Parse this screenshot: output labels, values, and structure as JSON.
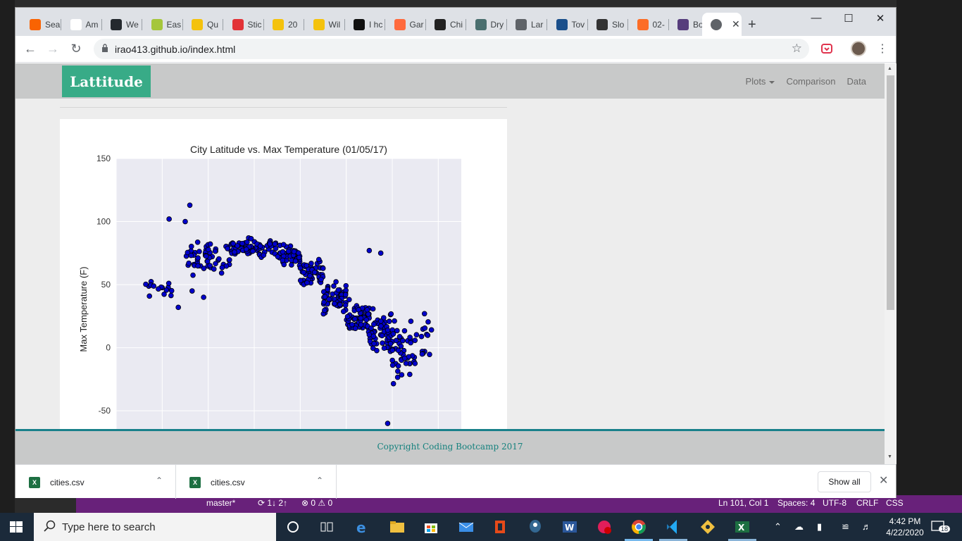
{
  "tabs": [
    {
      "label": "Sea",
      "favicon": "home-depot-icon",
      "color": "#f96302"
    },
    {
      "label": "Am",
      "favicon": "amazon-icon",
      "color": "#ffffff"
    },
    {
      "label": "We",
      "favicon": "github-icon",
      "color": "#24292e"
    },
    {
      "label": "Eas",
      "favicon": "avocado-icon",
      "color": "#a5c63b"
    },
    {
      "label": "Qu",
      "favicon": "flag-icon",
      "color": "#f4c20d"
    },
    {
      "label": "Stic",
      "favicon": "food-icon",
      "color": "#e23237"
    },
    {
      "label": "20",
      "favicon": "flag-icon",
      "color": "#f4c20d"
    },
    {
      "label": "Wil",
      "favicon": "flag-icon",
      "color": "#f4c20d"
    },
    {
      "label": "I hc",
      "favicon": "s-icon",
      "color": "#111111"
    },
    {
      "label": "Gar",
      "favicon": "spark-icon",
      "color": "#ff6a3d"
    },
    {
      "label": "Chi",
      "favicon": "f-icon",
      "color": "#222222"
    },
    {
      "label": "Dry",
      "favicon": "pick-icon",
      "color": "#4a6f6f"
    },
    {
      "label": "Lar",
      "favicon": "globe-icon",
      "color": "#5f6368"
    },
    {
      "label": "Tov",
      "favicon": "shoe-icon",
      "color": "#1a4f8b"
    },
    {
      "label": "Slo",
      "favicon": "pin-icon",
      "color": "#333333"
    },
    {
      "label": "02-",
      "favicon": "gitlab-icon",
      "color": "#fc6d26"
    },
    {
      "label": "Boc",
      "favicon": "bootstrap-icon",
      "color": "#563d7c"
    }
  ],
  "active_tab": {
    "favicon": "globe-icon",
    "close": "✕"
  },
  "new_tab": "+",
  "window_controls": {
    "minimize": "—",
    "maximize": "☐",
    "close": "✕"
  },
  "address": {
    "url": "irao413.github.io/index.html"
  },
  "site": {
    "brand": "Lattitude",
    "nav": {
      "plots": "Plots",
      "comparison": "Comparison",
      "data": "Data"
    },
    "footer": "Copyright Coding Bootcamp 2017",
    "brand_color": "#38ab87",
    "footer_text_color": "#16827e"
  },
  "chart_data": {
    "type": "scatter",
    "title": "City Latitude vs. Max Temperature (01/05/17)",
    "xlabel": "",
    "ylabel": "Max Temperature (F)",
    "ylim": [
      -70,
      150
    ],
    "yticks": [
      150,
      100,
      50,
      0,
      -50
    ],
    "xlim": [
      -60,
      90
    ],
    "point_color": "#0000cc",
    "grid": true,
    "background": "#eaeaf2",
    "clusters": [
      {
        "x_from": -48,
        "x_to": -30,
        "y_center": 48,
        "y_spread": 9,
        "n": 15
      },
      {
        "x_from": -30,
        "x_to": -10,
        "y_center": 72,
        "y_spread": 10,
        "n": 55
      },
      {
        "x_from": -10,
        "x_to": 10,
        "y_center": 80,
        "y_spread": 6,
        "n": 70
      },
      {
        "x_from": 10,
        "x_to": 20,
        "y_center": 74,
        "y_spread": 7,
        "n": 45
      },
      {
        "x_from": 20,
        "x_to": 30,
        "y_center": 58,
        "y_spread": 10,
        "n": 50
      },
      {
        "x_from": 30,
        "x_to": 40,
        "y_center": 40,
        "y_spread": 10,
        "n": 60
      },
      {
        "x_from": 40,
        "x_to": 50,
        "y_center": 25,
        "y_spread": 11,
        "n": 60
      },
      {
        "x_from": 50,
        "x_to": 60,
        "y_center": 12,
        "y_spread": 15,
        "n": 55
      },
      {
        "x_from": 60,
        "x_to": 70,
        "y_center": 0,
        "y_spread": 22,
        "n": 45
      },
      {
        "x_from": 70,
        "x_to": 78,
        "y_center": 5,
        "y_spread": 18,
        "n": 12
      }
    ],
    "outliers": [
      [
        -37,
        102
      ],
      [
        -30,
        100
      ],
      [
        -28,
        113
      ],
      [
        -33,
        32
      ],
      [
        -22,
        40
      ],
      [
        -27,
        45
      ],
      [
        50,
        77
      ],
      [
        55,
        75
      ],
      [
        58,
        -60
      ],
      [
        74,
        27
      ],
      [
        73,
        -5
      ]
    ]
  },
  "downloads": {
    "items": [
      {
        "name": "cities.csv"
      },
      {
        "name": "cities.csv"
      }
    ],
    "show_all": "Show all",
    "close": "✕"
  },
  "vscode_status": {
    "branch": "master*",
    "sync": "⟳ 1↓ 2↑",
    "problems": "⊗ 0 ⚠ 0",
    "position": "Ln 101, Col 1",
    "spaces": "Spaces: 4",
    "encoding": "UTF-8",
    "eol": "CRLF",
    "language": "CSS"
  },
  "taskbar": {
    "search_placeholder": "Type here to search",
    "time": "4:42 PM",
    "date": "4/22/2020",
    "notifications": "18"
  }
}
